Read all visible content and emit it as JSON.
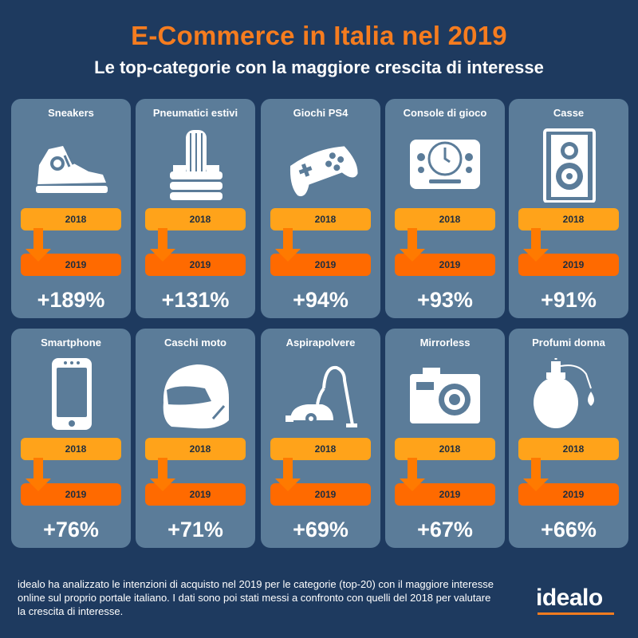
{
  "title": "E-Commerce in Italia nel 2019",
  "subtitle": "Le top-categorie con la maggiore crescita di interesse",
  "footer": "idealo ha analizzato le intenzioni di acquisto nel 2019 per le categorie (top-20) con il maggiore interesse online sul proprio portale italiano. I dati sono poi stati messi a confronto con quelli del 2018 per valutare la crescita di interesse.",
  "logo": "idealo",
  "colors": {
    "background": "#1e3a5f",
    "card": "#5b7c99",
    "title": "#f57c1f",
    "bar_2018": "#ffa31a",
    "bar_2019": "#ff6a00",
    "arrow": "#ff7a00"
  },
  "chart_data": {
    "type": "bar",
    "title": "E-Commerce in Italia nel 2019",
    "subtitle": "Le top-categorie con la maggiore crescita di interesse",
    "from_label": "2018",
    "to_label": "2019",
    "categories": [
      "Sneakers",
      "Pneumatici estivi",
      "Giochi PS4",
      "Console di gioco",
      "Casse",
      "Smartphone",
      "Caschi moto",
      "Aspirapolvere",
      "Mirrorless",
      "Profumi donna"
    ],
    "growth_labels": [
      "+189%",
      "+131%",
      "+94%",
      "+93%",
      "+91%",
      "+76%",
      "+71%",
      "+69%",
      "+67%",
      "+66%"
    ],
    "values": [
      189,
      131,
      94,
      93,
      91,
      76,
      71,
      69,
      67,
      66
    ],
    "icons": [
      "sneaker-icon",
      "tire-icon",
      "gamepad-icon",
      "console-icon",
      "speaker-icon",
      "smartphone-icon",
      "helmet-icon",
      "vacuum-icon",
      "camera-icon",
      "perfume-icon"
    ]
  }
}
